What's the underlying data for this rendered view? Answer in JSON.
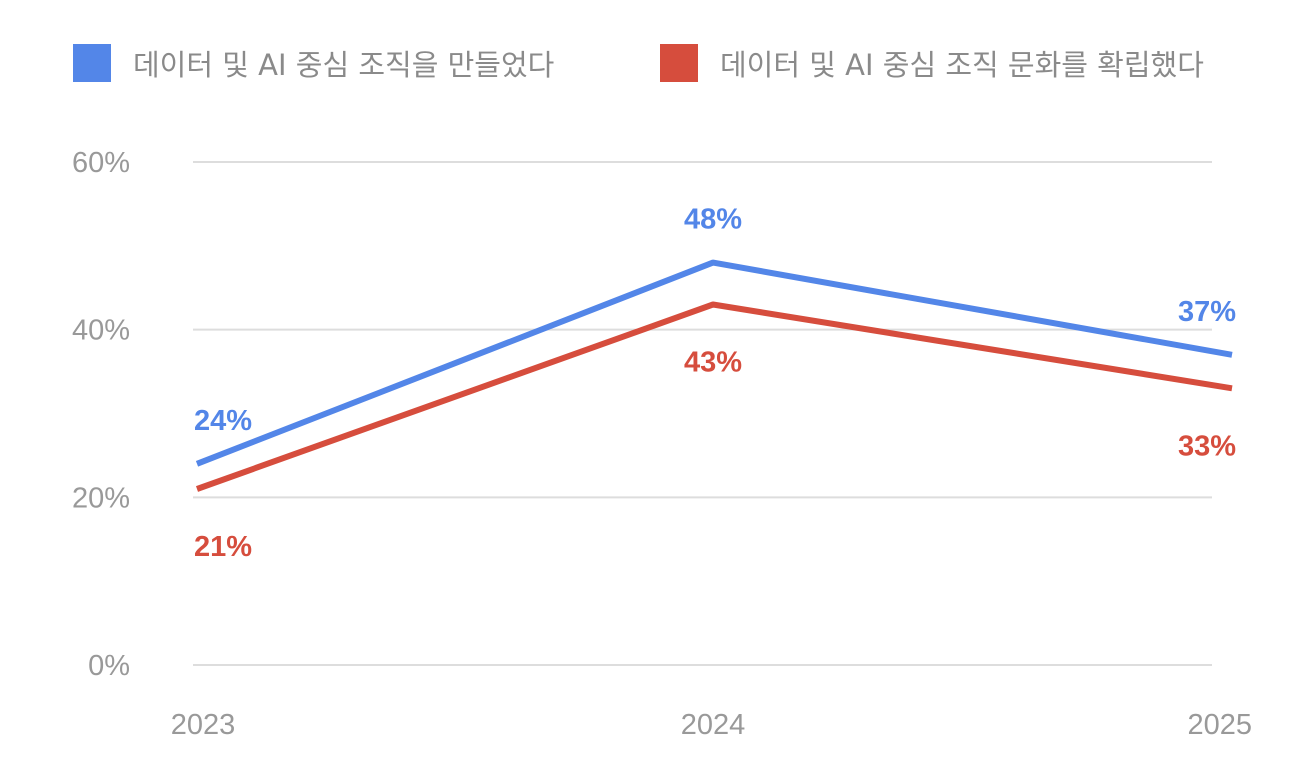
{
  "chart_data": {
    "type": "line",
    "categories": [
      "2023",
      "2024",
      "2025"
    ],
    "series": [
      {
        "name": "데이터 및 AI 중심 조직을 만들었다",
        "color": "#5386e8",
        "values": [
          24,
          48,
          37
        ],
        "labels": [
          "24%",
          "48%",
          "37%"
        ]
      },
      {
        "name": "데이터 및 AI 중심 조직 문화를 확립했다",
        "color": "#d64d3d",
        "values": [
          21,
          43,
          33
        ],
        "labels": [
          "21%",
          "43%",
          "33%"
        ]
      }
    ],
    "y_ticks": [
      0,
      20,
      40,
      60
    ],
    "y_tick_labels": [
      "0%",
      "20%",
      "40%",
      "60%"
    ],
    "ylim": [
      0,
      60
    ],
    "grid": true,
    "legend_position": "top",
    "title": "",
    "xlabel": "",
    "ylabel": ""
  }
}
